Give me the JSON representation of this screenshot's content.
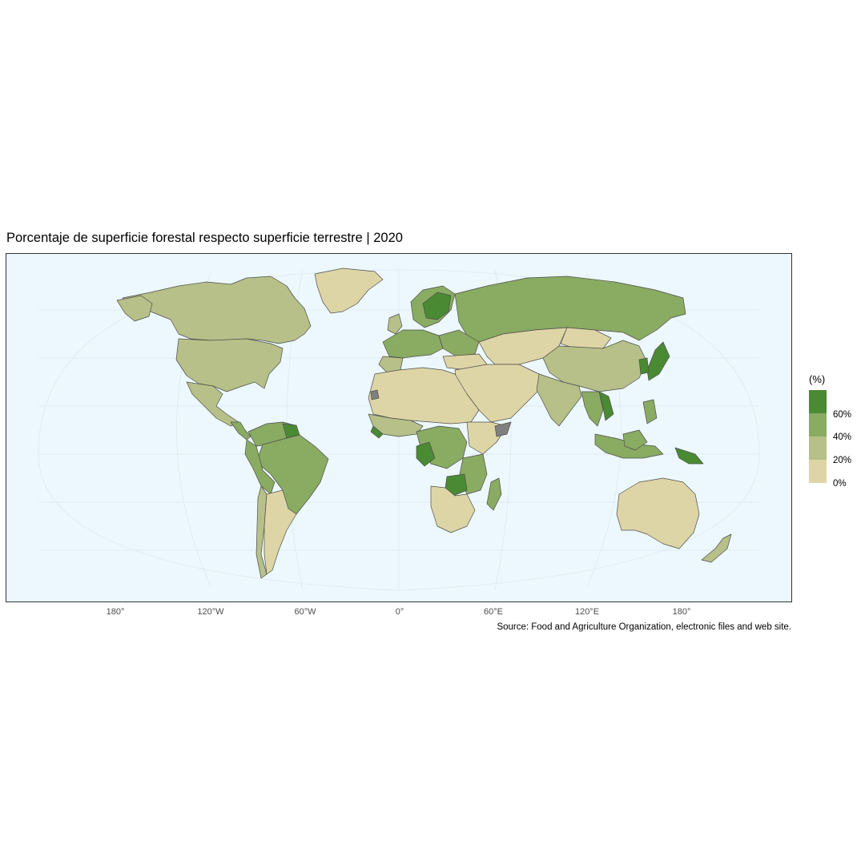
{
  "title": "Porcentaje de superficie forestal respecto superficie terrestre | 2020",
  "caption": "Source:  Food and Agriculture Organization, electronic files and web site.",
  "x_axis_ticks": [
    "180°",
    "120°W",
    "60°W",
    "0°",
    "60°E",
    "120°E",
    "180°"
  ],
  "legend": {
    "title": "(%)",
    "labels": [
      "60%",
      "40%",
      "20%",
      "0%"
    ],
    "colors": [
      "#4a8a32",
      "#8aab62",
      "#b6c088",
      "#ded5a6"
    ]
  },
  "colors": {
    "ocean": "#ecf8fd",
    "border": "#4d4d4d",
    "no_data": "#808080"
  },
  "chart_data": {
    "type": "choropleth",
    "projection": "Robinson",
    "variable": "Forest area (% of land area)",
    "year": 2020,
    "legend_breaks": [
      0,
      20,
      40,
      60
    ],
    "regions": [
      {
        "name": "Canada",
        "class": "20-40"
      },
      {
        "name": "United States",
        "class": "20-40"
      },
      {
        "name": "Greenland",
        "class": "0-20"
      },
      {
        "name": "Mexico",
        "class": "20-40"
      },
      {
        "name": "Central America",
        "class": "40-60"
      },
      {
        "name": "Brazil",
        "class": "40-60"
      },
      {
        "name": "Guyana / Suriname",
        "class": "60+"
      },
      {
        "name": "Argentina",
        "class": "0-20"
      },
      {
        "name": "Chile",
        "class": "20-40"
      },
      {
        "name": "North Africa & Sahel",
        "class": "0-20"
      },
      {
        "name": "Gabon / Congo",
        "class": "60+"
      },
      {
        "name": "DR Congo",
        "class": "40-60"
      },
      {
        "name": "Zambia",
        "class": "60+"
      },
      {
        "name": "Southern Africa",
        "class": "0-20"
      },
      {
        "name": "Finland / Sweden",
        "class": "60+"
      },
      {
        "name": "Russia",
        "class": "40-60"
      },
      {
        "name": "Middle East & Central Asia",
        "class": "0-20"
      },
      {
        "name": "China",
        "class": "20-40"
      },
      {
        "name": "India",
        "class": "20-40"
      },
      {
        "name": "Japan",
        "class": "60+"
      },
      {
        "name": "Southeast Asia",
        "class": "40-60"
      },
      {
        "name": "Papua New Guinea",
        "class": "60+"
      },
      {
        "name": "Australia",
        "class": "0-20"
      },
      {
        "name": "New Zealand",
        "class": "20-40"
      }
    ]
  }
}
